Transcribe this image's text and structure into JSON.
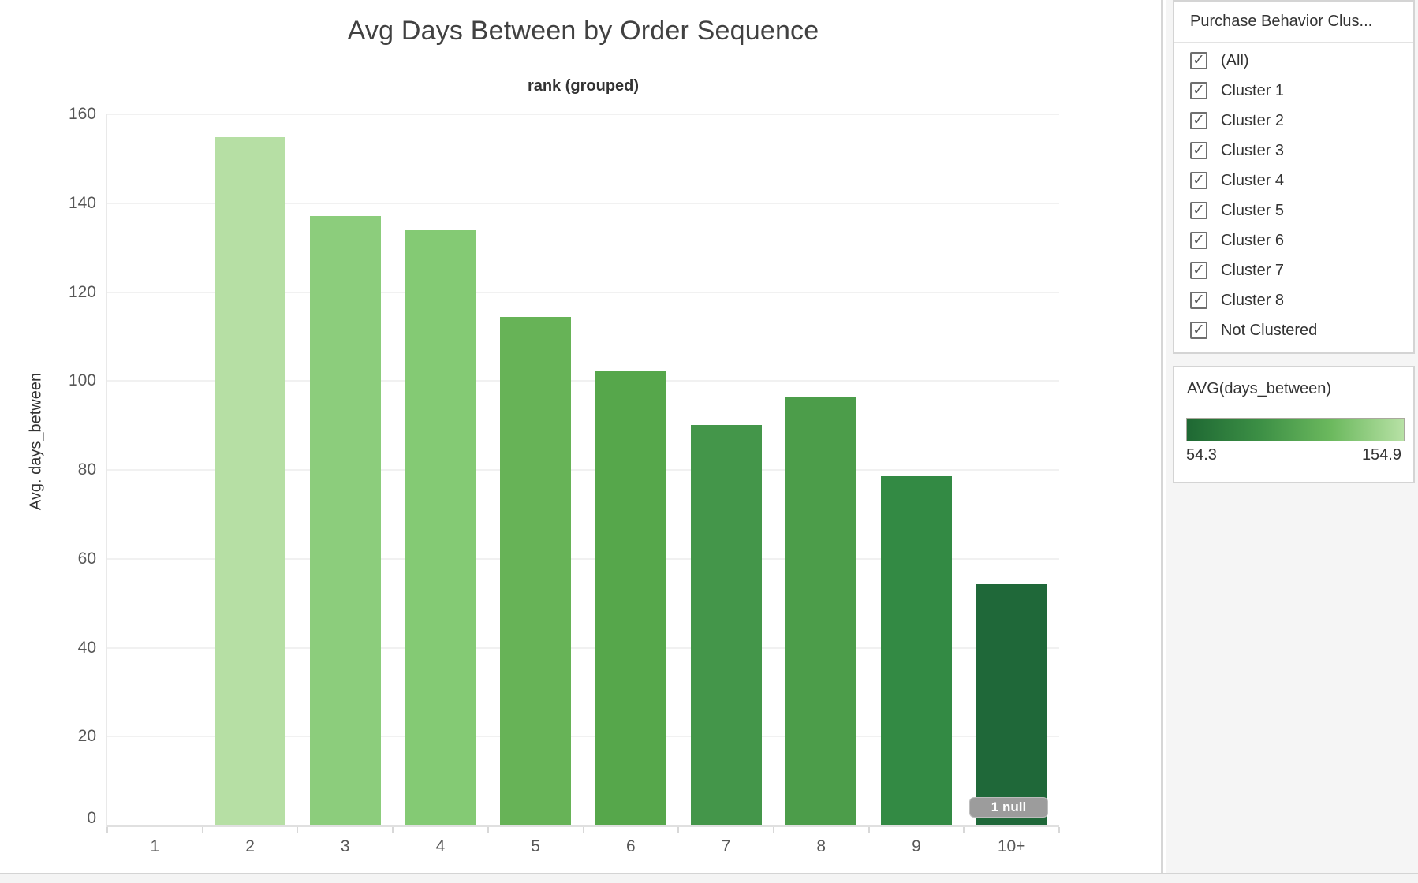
{
  "chart": {
    "title": "Avg Days Between by Order Sequence",
    "field_label": "rank (grouped)",
    "y_axis_title": "Avg. days_between",
    "null_badge": "1 null"
  },
  "chart_data": {
    "type": "bar",
    "title": "Avg Days Between by Order Sequence",
    "subtitle": "rank (grouped)",
    "xlabel": "rank (grouped)",
    "ylabel": "Avg. days_between",
    "categories": [
      "1",
      "2",
      "3",
      "4",
      "5",
      "6",
      "7",
      "8",
      "9",
      "10+"
    ],
    "values": [
      null,
      154.9,
      137.2,
      133.9,
      114.4,
      102.4,
      90.1,
      96.4,
      78.6,
      54.3
    ],
    "bar_colors": [
      null,
      "#b6dfa4",
      "#8ccd7c",
      "#84ca74",
      "#67b357",
      "#56a74b",
      "#44964a",
      "#4c9d4a",
      "#338a44",
      "#1f6839"
    ],
    "ylim": [
      0,
      160
    ],
    "yticks": [
      0,
      20,
      40,
      60,
      80,
      100,
      120,
      140,
      160
    ],
    "grid": true,
    "legend_position": "right",
    "color_encoding": {
      "field": "AVG(days_between)",
      "min": 54.3,
      "max": 154.9,
      "scheme": "green (dark=low, light=high)"
    },
    "annotations": [
      "1 null indicator at bottom of 10+ bar"
    ]
  },
  "filter_panel": {
    "title": "Purchase Behavior Clus...",
    "checkbox_glyph": "✓",
    "items": [
      {
        "label": "(All)",
        "checked": true
      },
      {
        "label": "Cluster 1",
        "checked": true
      },
      {
        "label": "Cluster 2",
        "checked": true
      },
      {
        "label": "Cluster 3",
        "checked": true
      },
      {
        "label": "Cluster 4",
        "checked": true
      },
      {
        "label": "Cluster 5",
        "checked": true
      },
      {
        "label": "Cluster 6",
        "checked": true
      },
      {
        "label": "Cluster 7",
        "checked": true
      },
      {
        "label": "Cluster 8",
        "checked": true
      },
      {
        "label": "Not Clustered",
        "checked": true
      }
    ]
  },
  "legend_panel": {
    "title": "AVG(days_between)",
    "min_label": "54.3",
    "max_label": "154.9",
    "gradient_stops": [
      "#1e6833",
      "#3c8f45",
      "#6cb95e",
      "#b7e1a5"
    ]
  },
  "colors": {
    "grid": "#f1f1f1",
    "axis": "#e0e0e0",
    "tick_text": "#575757",
    "panel_bg": "#f5f5f5",
    "card_border": "#d4d4d4",
    "null_badge_bg": "#9c9c9c"
  }
}
